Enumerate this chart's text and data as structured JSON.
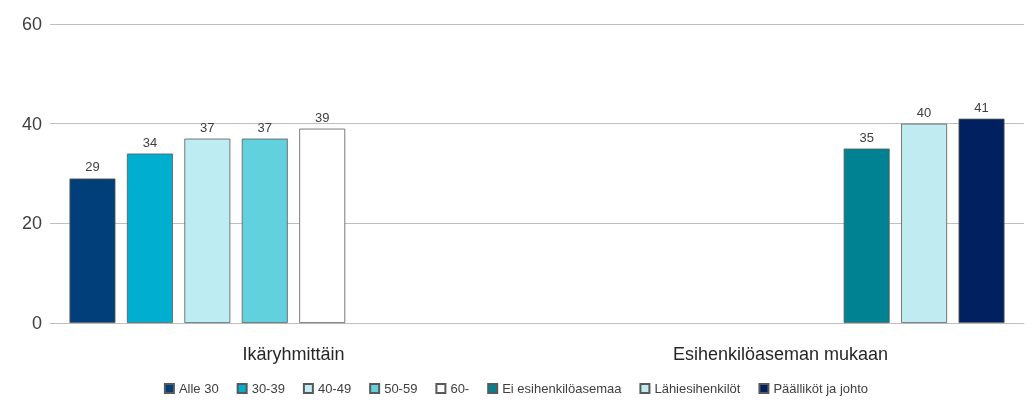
{
  "chart_data": {
    "type": "bar",
    "categories": [
      "Ikäryhmittäin",
      "Esihenkilöaseman mukaan"
    ],
    "series": [
      {
        "name": "Alle 30",
        "color": "#003f7a",
        "values": [
          29,
          null
        ]
      },
      {
        "name": "30-39",
        "color": "#00afcf",
        "values": [
          34,
          null
        ]
      },
      {
        "name": "40-49",
        "color": "#bdedf2",
        "values": [
          37,
          null
        ]
      },
      {
        "name": "50-59",
        "color": "#62d1de",
        "values": [
          37,
          null
        ]
      },
      {
        "name": "60-",
        "color": "#ffffff",
        "values": [
          39,
          null
        ]
      },
      {
        "name": "Ei esihenkilöasemaa",
        "color": "#008292",
        "values": [
          null,
          35
        ]
      },
      {
        "name": "Lähiesihenkilöt",
        "color": "#c0ebf1",
        "values": [
          null,
          40
        ]
      },
      {
        "name": "Päälliköt ja johto",
        "color": "#00205f",
        "values": [
          null,
          41
        ]
      }
    ],
    "ylim": [
      0,
      60
    ],
    "yticks": [
      0,
      20,
      40,
      60
    ],
    "grid": "y",
    "legend": "bottom",
    "data_labels": true
  }
}
